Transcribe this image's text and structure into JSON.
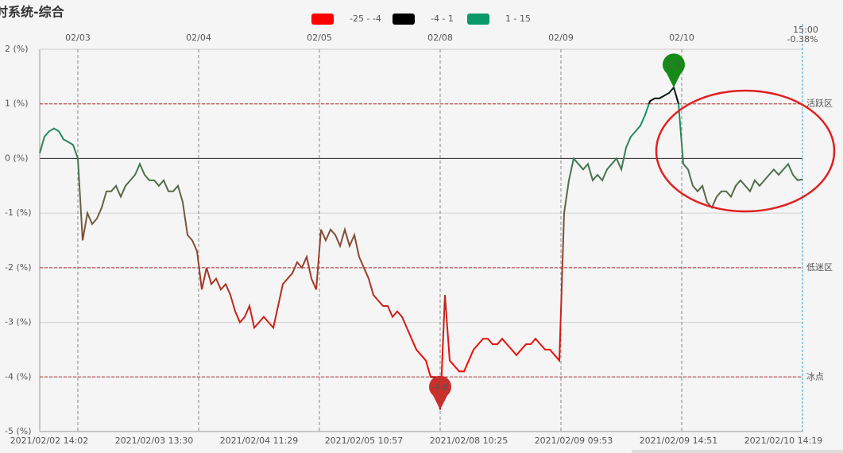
{
  "chart_data": {
    "type": "line",
    "title": "时系统-综合",
    "ylim": [
      -5,
      2
    ],
    "yticks": [
      {
        "value": 2,
        "label": "2 (%)"
      },
      {
        "value": 1,
        "label": "1 (%)"
      },
      {
        "value": 0,
        "label": "0 (%)"
      },
      {
        "value": -1,
        "label": "-1 (%)"
      },
      {
        "value": -2,
        "label": "-2 (%)"
      },
      {
        "value": -3,
        "label": "-3 (%)"
      },
      {
        "value": -4,
        "label": "-4 (%)"
      },
      {
        "value": -5,
        "label": "-5 (%)"
      }
    ],
    "grid": true,
    "pieces": [
      {
        "label": "-25 - -4",
        "min": -25,
        "max": -4,
        "color": "#ff0000"
      },
      {
        "label": "-4 - 1",
        "min": -4,
        "max": 1,
        "color": "#000000"
      },
      {
        "label": "1 - 15",
        "min": 1,
        "max": 15,
        "color": "#0a9a6a"
      }
    ],
    "mark_lines": [
      {
        "value": 1,
        "label": "活跃区"
      },
      {
        "value": -2,
        "label": "低迷区"
      },
      {
        "value": -4,
        "label": "冰点"
      }
    ],
    "day_markers": [
      {
        "label": "02/03",
        "x": 8
      },
      {
        "label": "02/04",
        "x": 33.33
      },
      {
        "label": "02/05",
        "x": 58.67
      },
      {
        "label": "02/08",
        "x": 84
      },
      {
        "label": "02/09",
        "x": 109.33
      },
      {
        "label": "02/10",
        "x": 134.67
      }
    ],
    "end_label": {
      "time": "15:00",
      "value_label": "-0.38%"
    },
    "categories": [
      null,
      null,
      "2021/02/02 14:02",
      null,
      null,
      null,
      null,
      null,
      null,
      null,
      null,
      null,
      null,
      null,
      null,
      null,
      null,
      null,
      null,
      null,
      null,
      null,
      null,
      null,
      "2021/02/03 13:30",
      null,
      null,
      null,
      null,
      null,
      null,
      null,
      null,
      null,
      null,
      null,
      null,
      null,
      null,
      null,
      null,
      null,
      null,
      null,
      null,
      null,
      "2021/02/04 11:29",
      null,
      null,
      null,
      null,
      null,
      null,
      null,
      null,
      null,
      null,
      null,
      null,
      null,
      null,
      null,
      null,
      null,
      null,
      null,
      null,
      null,
      "2021/02/05 10:57",
      null,
      null,
      null,
      null,
      null,
      null,
      null,
      null,
      null,
      null,
      null,
      null,
      null,
      null,
      null,
      null,
      null,
      null,
      null,
      null,
      null,
      "2021/02/08 10:25",
      null,
      null,
      null,
      null,
      null,
      null,
      null,
      null,
      null,
      null,
      null,
      null,
      null,
      null,
      null,
      null,
      null,
      null,
      null,
      null,
      null,
      "2021/02/09 09:53",
      null,
      null,
      null,
      null,
      null,
      null,
      null,
      null,
      null,
      null,
      null,
      null,
      null,
      null,
      null,
      null,
      null,
      null,
      null,
      null,
      null,
      "2021/02/09 14:51",
      null,
      null,
      null,
      null,
      null,
      null,
      null,
      null,
      null,
      null,
      null,
      null,
      null,
      null,
      null,
      null,
      null,
      null,
      null,
      null,
      null,
      "2021/02/10 14:19",
      null,
      null,
      null,
      null
    ],
    "values": [
      0.1,
      0.4,
      0.5,
      0.55,
      0.5,
      0.35,
      0.3,
      0.25,
      0.0,
      -1.5,
      -1.0,
      -1.2,
      -1.1,
      -0.9,
      -0.6,
      -0.6,
      -0.5,
      -0.7,
      -0.5,
      -0.4,
      -0.3,
      -0.1,
      -0.3,
      -0.4,
      -0.4,
      -0.5,
      -0.4,
      -0.6,
      -0.6,
      -0.5,
      -0.8,
      -1.4,
      -1.5,
      -1.7,
      -2.4,
      -2.0,
      -2.3,
      -2.2,
      -2.4,
      -2.3,
      -2.5,
      -2.8,
      -3.0,
      -2.9,
      -2.7,
      -3.1,
      -3.0,
      -2.9,
      -3.0,
      -3.1,
      -2.7,
      -2.3,
      -2.2,
      -2.1,
      -1.9,
      -2.0,
      -1.8,
      -2.2,
      -2.4,
      -1.3,
      -1.5,
      -1.3,
      -1.4,
      -1.6,
      -1.3,
      -1.6,
      -1.4,
      -1.8,
      -2.0,
      -2.2,
      -2.5,
      -2.6,
      -2.7,
      -2.7,
      -2.9,
      -2.8,
      -2.9,
      -3.1,
      -3.3,
      -3.5,
      -3.6,
      -3.7,
      -4.0,
      -4.0,
      -4.6,
      -2.5,
      -3.7,
      -3.8,
      -3.9,
      -3.9,
      -3.7,
      -3.5,
      -3.4,
      -3.3,
      -3.3,
      -3.4,
      -3.4,
      -3.3,
      -3.4,
      -3.5,
      -3.6,
      -3.5,
      -3.4,
      -3.4,
      -3.3,
      -3.4,
      -3.5,
      -3.5,
      -3.6,
      -3.7,
      -1.0,
      -0.4,
      0.0,
      -0.1,
      -0.2,
      -0.1,
      -0.4,
      -0.3,
      -0.4,
      -0.2,
      -0.1,
      0.0,
      -0.2,
      0.2,
      0.4,
      0.5,
      0.6,
      0.8,
      1.05,
      1.1,
      1.1,
      1.15,
      1.2,
      1.3,
      1.0,
      -0.1,
      -0.2,
      -0.5,
      -0.6,
      -0.5,
      -0.8,
      -0.9,
      -0.7,
      -0.6,
      -0.6,
      -0.7,
      -0.5,
      -0.4,
      -0.5,
      -0.6,
      -0.4,
      -0.5,
      -0.4,
      -0.3,
      -0.2,
      -0.3,
      -0.2,
      -0.1,
      -0.3,
      -0.4,
      -0.38
    ]
  }
}
